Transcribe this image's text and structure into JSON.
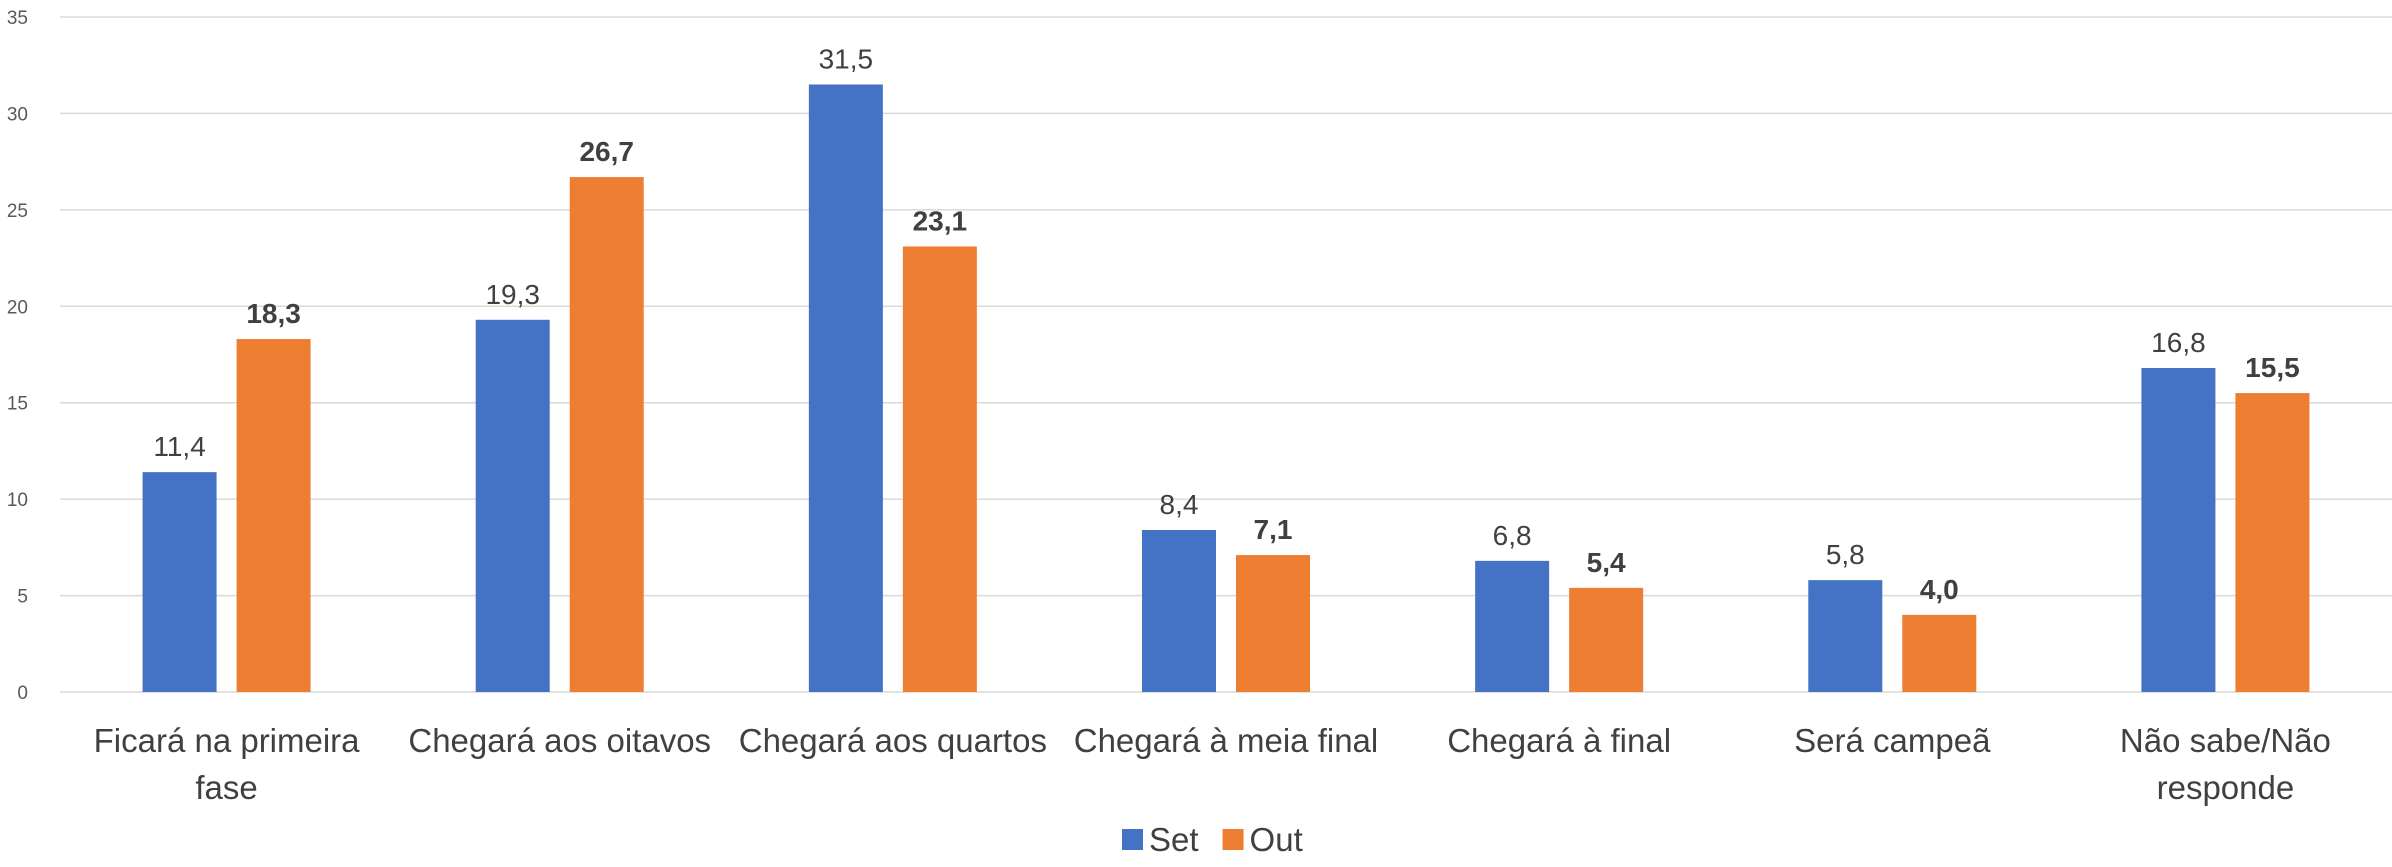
{
  "chart_data": {
    "type": "bar",
    "categories": [
      [
        "Ficará na primeira",
        "fase"
      ],
      [
        "Chegará aos oitavos"
      ],
      [
        "Chegará aos quartos"
      ],
      [
        "Chegará à meia final"
      ],
      [
        "Chegará à final"
      ],
      [
        "Será campeã"
      ],
      [
        "Não sabe/Não",
        "responde"
      ]
    ],
    "series": [
      {
        "name": "Set",
        "color": "#4472C4",
        "label_bold": false,
        "values": [
          11.4,
          19.3,
          31.5,
          8.4,
          6.8,
          5.8,
          16.8
        ],
        "labels": [
          "11,4",
          "19,3",
          "31,5",
          "8,4",
          "6,8",
          "5,8",
          "16,8"
        ]
      },
      {
        "name": "Out",
        "color": "#ED7D31",
        "label_bold": true,
        "values": [
          18.3,
          26.7,
          23.1,
          7.1,
          5.4,
          4.0,
          15.5
        ],
        "labels": [
          "18,3",
          "26,7",
          "23,1",
          "7,1",
          "5,4",
          "4,0",
          "15,5"
        ]
      }
    ],
    "ylim": [
      0,
      35
    ],
    "yticks": [
      0,
      5,
      10,
      15,
      20,
      25,
      30,
      35
    ],
    "grid": true,
    "legend": "bottom-center"
  }
}
